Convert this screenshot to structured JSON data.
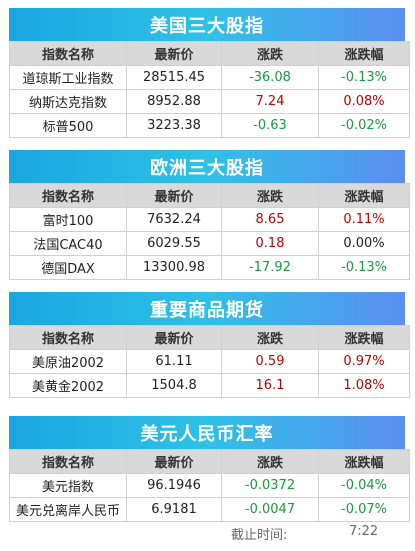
{
  "footer": {
    "label": "截止时间:",
    "time": "7:22"
  },
  "sections": [
    {
      "title": "美国三大股指",
      "headers": [
        "指数名称",
        "最新价",
        "涨跌",
        "涨跌幅"
      ],
      "rows": [
        {
          "name": "道琼斯工业指数",
          "price": "28515.45",
          "change": "-36.08",
          "pct": "-0.13%",
          "dir": "down"
        },
        {
          "name": "纳斯达克指数",
          "price": "8952.88",
          "change": "7.24",
          "pct": "0.08%",
          "dir": "up"
        },
        {
          "name": "标普500",
          "price": "3223.38",
          "change": "-0.63",
          "pct": "-0.02%",
          "dir": "down"
        }
      ]
    },
    {
      "title": "欧洲三大股指",
      "headers": [
        "指数名称",
        "最新价",
        "涨跌",
        "涨跌幅"
      ],
      "rows": [
        {
          "name": "富时100",
          "price": "7632.24",
          "change": "8.65",
          "pct": "0.11%",
          "dir": "up"
        },
        {
          "name": "法国CAC40",
          "price": "6029.55",
          "change": "0.18",
          "pct": "0.00%",
          "dir": "up",
          "pct_dir": "flat"
        },
        {
          "name": "德国DAX",
          "price": "13300.98",
          "change": "-17.92",
          "pct": "-0.13%",
          "dir": "down"
        }
      ]
    },
    {
      "title": "重要商品期货",
      "headers": [
        "指数名称",
        "最新价",
        "涨跌",
        "涨跌幅"
      ],
      "rows": [
        {
          "name": "美原油2002",
          "price": "61.11",
          "change": "0.59",
          "pct": "0.97%",
          "dir": "up"
        },
        {
          "name": "美黄金2002",
          "price": "1504.8",
          "change": "16.1",
          "pct": "1.08%",
          "dir": "up"
        }
      ]
    },
    {
      "title": "美元人民币汇率",
      "headers": [
        "指数名称",
        "最新价",
        "涨跌",
        "涨跌幅"
      ],
      "rows": [
        {
          "name": "美元指数",
          "price": "96.1946",
          "change": "-0.0372",
          "pct": "-0.04%",
          "dir": "down"
        },
        {
          "name": "美元兑离岸人民币",
          "price": "6.9181",
          "change": "-0.0047",
          "pct": "-0.07%",
          "dir": "down"
        }
      ]
    }
  ],
  "colors": {
    "up": "#c00000",
    "down": "#1a9a3a",
    "header_bg": "#d9d9d9",
    "banner_start": "#1aa6e0",
    "banner_end": "#5b8ef0"
  }
}
